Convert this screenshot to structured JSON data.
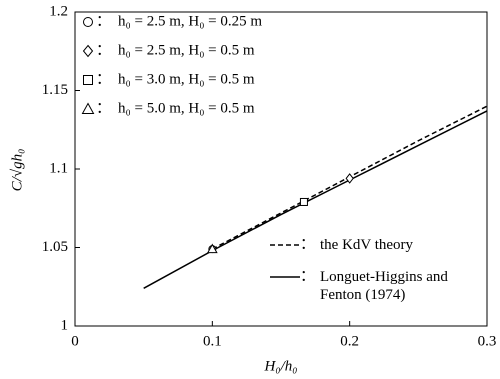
{
  "chart_data": {
    "type": "line",
    "x_label": "H₀/h₀",
    "y_label": "C/√gh₀",
    "legend_separator": "：",
    "xlim": [
      0,
      0.3
    ],
    "xticks": [
      0,
      0.1,
      0.2,
      0.3
    ],
    "ylim": [
      1,
      1.2
    ],
    "yticks": [
      1,
      1.05,
      1.1,
      1.15,
      1.2
    ],
    "series": [
      {
        "name": "h₀ = 2.5 m, H₀ = 0.25 m",
        "marker": "circle",
        "color": "#000000",
        "x": [
          0.1
        ],
        "values": [
          1.049
        ]
      },
      {
        "name": "h₀ = 2.5 m, H₀ = 0.5 m",
        "marker": "diamond",
        "color": "#000000",
        "x": [
          0.2
        ],
        "values": [
          1.094
        ]
      },
      {
        "name": "h₀ = 3.0 m, H₀ = 0.5 m",
        "marker": "square",
        "color": "#000000",
        "x": [
          0.1667
        ],
        "values": [
          1.079
        ]
      },
      {
        "name": "h₀ = 5.0 m, H₀ = 0.5 m",
        "marker": "triangle",
        "color": "#000000",
        "x": [
          0.1
        ],
        "values": [
          1.049
        ]
      },
      {
        "name": "the KdV theory",
        "line_style": "dashed",
        "color": "#000000",
        "x": [
          0.1,
          0.15,
          0.2,
          0.25,
          0.3
        ],
        "values": [
          1.049,
          1.072,
          1.095,
          1.118,
          1.14
        ]
      },
      {
        "name": "Longuet-Higgins and Fenton (1974)",
        "line_style": "solid",
        "color": "#000000",
        "x": [
          0.05,
          0.1,
          0.15,
          0.2,
          0.25,
          0.3
        ],
        "values": [
          1.024,
          1.048,
          1.071,
          1.093,
          1.115,
          1.137
        ]
      }
    ]
  }
}
